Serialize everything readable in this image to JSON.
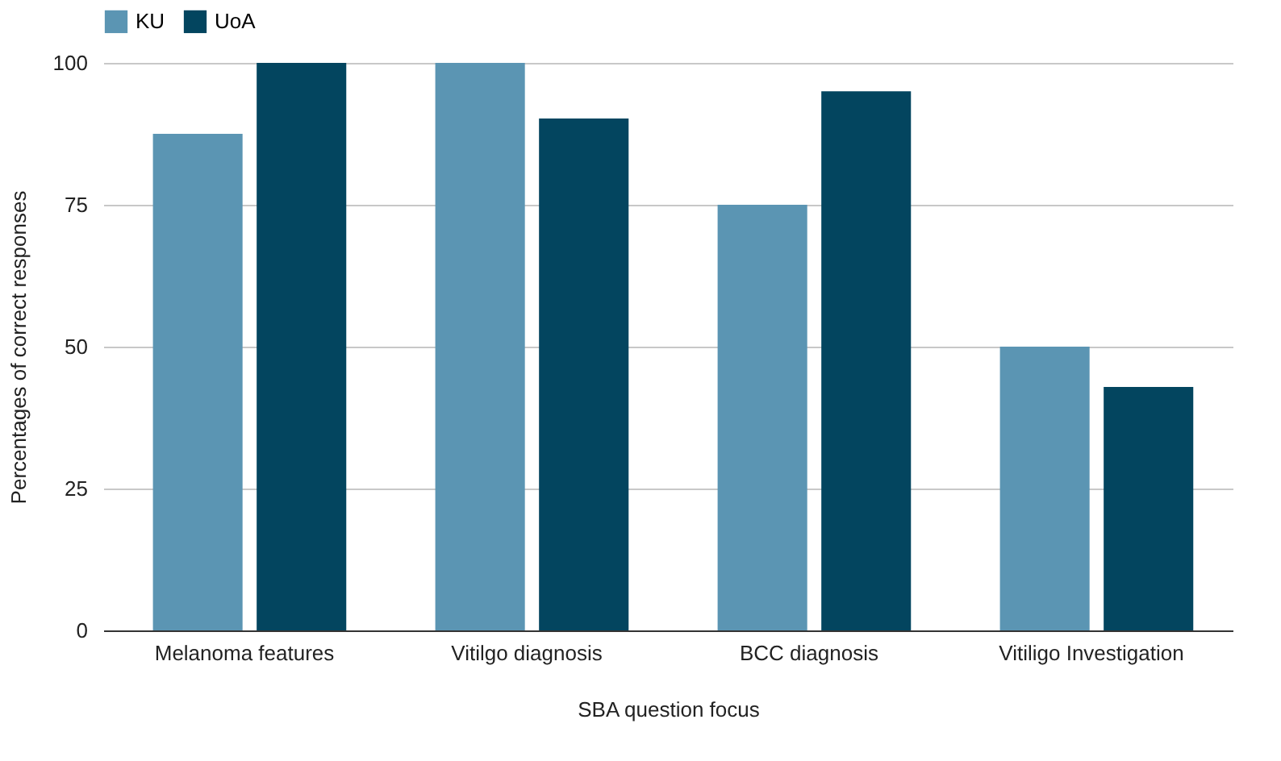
{
  "chart_data": {
    "type": "bar",
    "xlabel": "SBA question focus",
    "ylabel": "Percentages of correct responses",
    "categories": [
      "Melanoma features",
      "Vitilgo diagnosis",
      "BCC diagnosis",
      "Vitiligo Investigation"
    ],
    "series": [
      {
        "name": "KU",
        "color": "#5b95b3",
        "values": [
          87.5,
          100,
          75,
          50
        ]
      },
      {
        "name": "UoA",
        "color": "#03455f",
        "values": [
          100,
          90.2,
          95,
          42.9
        ]
      }
    ],
    "ylim": [
      0,
      100
    ],
    "yticks": [
      0,
      25,
      50,
      75,
      100
    ],
    "grid": "y",
    "legend": "top"
  }
}
